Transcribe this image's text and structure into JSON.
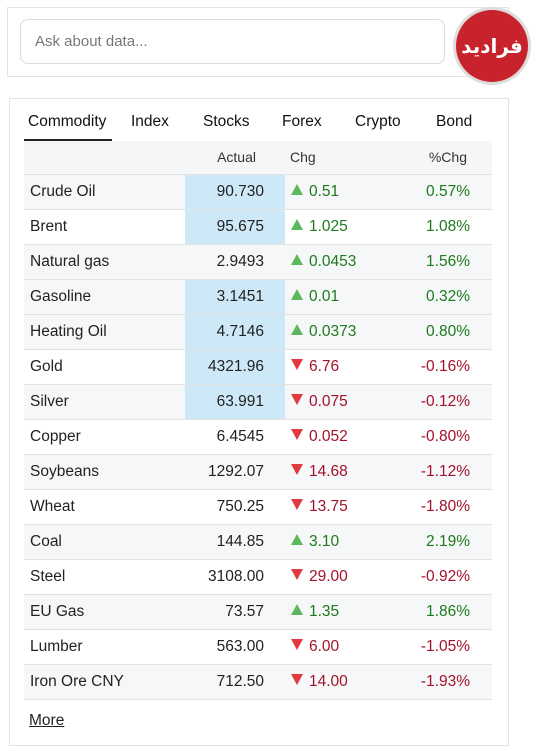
{
  "search": {
    "placeholder": "Ask about data...",
    "logo": "فرادید"
  },
  "tabs": {
    "items": [
      "Commodity",
      "Index",
      "Stocks",
      "Forex",
      "Crypto",
      "Bond"
    ],
    "active": 0
  },
  "table": {
    "headers": [
      "Actual",
      "Chg",
      "%Chg"
    ],
    "rows": [
      {
        "name": "Crude Oil",
        "actual": "90.730",
        "chg": "0.51",
        "pct": "0.57%",
        "dir": "up",
        "highlight": true
      },
      {
        "name": "Brent",
        "actual": "95.675",
        "chg": "1.025",
        "pct": "1.08%",
        "dir": "up",
        "highlight": true
      },
      {
        "name": "Natural gas",
        "actual": "2.9493",
        "chg": "0.0453",
        "pct": "1.56%",
        "dir": "up",
        "highlight": false
      },
      {
        "name": "Gasoline",
        "actual": "3.1451",
        "chg": "0.01",
        "pct": "0.32%",
        "dir": "up",
        "highlight": true
      },
      {
        "name": "Heating Oil",
        "actual": "4.7146",
        "chg": "0.0373",
        "pct": "0.80%",
        "dir": "up",
        "highlight": true
      },
      {
        "name": "Gold",
        "actual": "4321.96",
        "chg": "6.76",
        "pct": "-0.16%",
        "dir": "down",
        "highlight": true
      },
      {
        "name": "Silver",
        "actual": "63.991",
        "chg": "0.075",
        "pct": "-0.12%",
        "dir": "down",
        "highlight": true
      },
      {
        "name": "Copper",
        "actual": "6.4545",
        "chg": "0.052",
        "pct": "-0.80%",
        "dir": "down",
        "highlight": false
      },
      {
        "name": "Soybeans",
        "actual": "1292.07",
        "chg": "14.68",
        "pct": "-1.12%",
        "dir": "down",
        "highlight": false
      },
      {
        "name": "Wheat",
        "actual": "750.25",
        "chg": "13.75",
        "pct": "-1.80%",
        "dir": "down",
        "highlight": false
      },
      {
        "name": "Coal",
        "actual": "144.85",
        "chg": "3.10",
        "pct": "2.19%",
        "dir": "up",
        "highlight": false
      },
      {
        "name": "Steel",
        "actual": "3108.00",
        "chg": "29.00",
        "pct": "-0.92%",
        "dir": "down",
        "highlight": false
      },
      {
        "name": "EU Gas",
        "actual": "73.57",
        "chg": "1.35",
        "pct": "1.86%",
        "dir": "up",
        "highlight": false
      },
      {
        "name": "Lumber",
        "actual": "563.00",
        "chg": "6.00",
        "pct": "-1.05%",
        "dir": "down",
        "highlight": false
      },
      {
        "name": "Iron Ore CNY",
        "actual": "712.50",
        "chg": "14.00",
        "pct": "-1.93%",
        "dir": "down",
        "highlight": false
      }
    ]
  },
  "more": "More"
}
